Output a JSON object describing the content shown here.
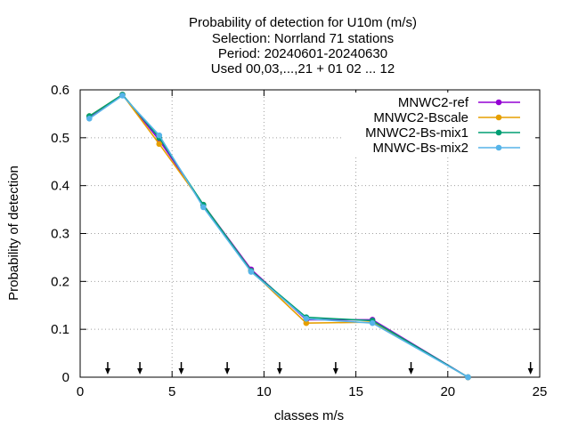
{
  "chart_data": {
    "type": "line",
    "title_lines": [
      "Probability of detection  for U10m (m/s)",
      "Selection: Norrland     71 stations",
      "Period: 20240601-20240630",
      "Used 00,03,...,21 + 01 02 ... 12"
    ],
    "xlabel": "classes m/s",
    "ylabel": "Probability of detection",
    "xlim": [
      0,
      25
    ],
    "ylim": [
      0,
      0.6
    ],
    "xticks": [
      0,
      5,
      10,
      15,
      20,
      25
    ],
    "yticks": [
      0,
      0.1,
      0.2,
      0.3,
      0.4,
      0.5,
      0.6
    ],
    "xtick_labels": [
      "0",
      "5",
      "10",
      "15",
      "20",
      "25"
    ],
    "ytick_labels": [
      "0",
      "0.1",
      "0.2",
      "0.3",
      "0.4",
      "0.5",
      "0.6"
    ],
    "grid": true,
    "legend_position": "top-right",
    "class_arrows_x": [
      1.5,
      3.25,
      5.5,
      8.0,
      10.85,
      13.9,
      18.0,
      24.5
    ],
    "series": [
      {
        "name": "MNWC2-ref",
        "color": "#9400d3",
        "x": [
          0.5,
          2.3,
          4.3,
          6.7,
          9.3,
          12.3,
          15.9,
          21.1
        ],
        "values": [
          0.543,
          0.59,
          0.495,
          0.36,
          0.225,
          0.12,
          0.12,
          0.0
        ]
      },
      {
        "name": "MNWC2-Bscale",
        "color": "#e69f00",
        "x": [
          0.5,
          2.3,
          4.3,
          6.7,
          9.3,
          12.3,
          15.9,
          21.1
        ],
        "values": [
          0.545,
          0.59,
          0.487,
          0.36,
          0.222,
          0.113,
          0.115,
          0.0
        ]
      },
      {
        "name": "MNWC2-Bs-mix1",
        "color": "#009e73",
        "x": [
          0.5,
          2.3,
          4.3,
          6.7,
          9.3,
          12.3,
          15.9,
          21.1
        ],
        "values": [
          0.545,
          0.59,
          0.5,
          0.36,
          0.222,
          0.125,
          0.118,
          0.0
        ]
      },
      {
        "name": "MNWC-Bs-mix2",
        "color": "#56b4e9",
        "x": [
          0.5,
          2.3,
          4.3,
          6.7,
          9.3,
          12.3,
          15.9,
          21.1
        ],
        "values": [
          0.54,
          0.588,
          0.505,
          0.355,
          0.22,
          0.122,
          0.113,
          0.0
        ]
      }
    ]
  }
}
